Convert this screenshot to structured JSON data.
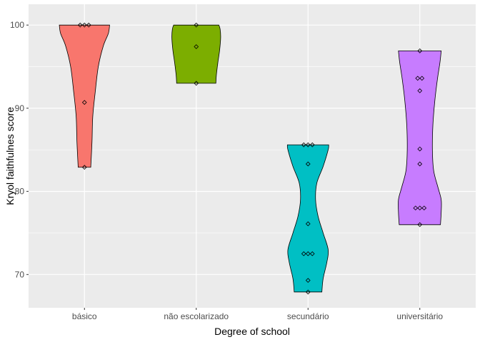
{
  "chart_data": {
    "type": "violin",
    "xlabel": "Degree of school",
    "ylabel": "Kryol faithfulnes score",
    "ylim": [
      66,
      102.5
    ],
    "yticks": [
      70,
      80,
      90,
      100
    ],
    "grid": true,
    "legend": "none",
    "categories": [
      {
        "name": "básico",
        "color": "#F8766D",
        "points": [
          100,
          100,
          100,
          90.7,
          82.9
        ],
        "violin": [
          [
            82.9,
            0.25
          ],
          [
            86,
            0.3
          ],
          [
            89,
            0.33
          ],
          [
            92,
            0.43
          ],
          [
            95,
            0.55
          ],
          [
            97.5,
            0.75
          ],
          [
            99,
            0.95
          ],
          [
            100,
            1.0
          ]
        ]
      },
      {
        "name": "não escolarizado",
        "color": "#7CAE00",
        "points": [
          100,
          97.4,
          93
        ],
        "violin": [
          [
            93,
            0.78
          ],
          [
            94,
            0.8
          ],
          [
            95.5,
            0.86
          ],
          [
            97,
            0.93
          ],
          [
            98.5,
            0.97
          ],
          [
            99.5,
            0.95
          ],
          [
            100,
            0.9
          ]
        ]
      },
      {
        "name": "secundário",
        "color": "#00BFC4",
        "points": [
          85.6,
          85.6,
          85.6,
          83.3,
          76.1,
          72.5,
          72.5,
          72.5,
          69.3,
          67.9
        ],
        "violin": [
          [
            67.9,
            0.55
          ],
          [
            69.5,
            0.6
          ],
          [
            71.5,
            0.75
          ],
          [
            73,
            0.8
          ],
          [
            75,
            0.6
          ],
          [
            77,
            0.4
          ],
          [
            79,
            0.3
          ],
          [
            81,
            0.35
          ],
          [
            83,
            0.6
          ],
          [
            85,
            0.8
          ],
          [
            85.6,
            0.82
          ]
        ]
      },
      {
        "name": "universitário",
        "color": "#C77CFF",
        "points": [
          96.9,
          93.6,
          93.6,
          92.1,
          85.1,
          83.3,
          78,
          78,
          78,
          76
        ],
        "violin": [
          [
            76,
            0.82
          ],
          [
            77.5,
            0.85
          ],
          [
            79,
            0.85
          ],
          [
            80.5,
            0.72
          ],
          [
            82.5,
            0.55
          ],
          [
            85,
            0.5
          ],
          [
            88,
            0.52
          ],
          [
            91,
            0.6
          ],
          [
            93.5,
            0.7
          ],
          [
            95.5,
            0.8
          ],
          [
            96.9,
            0.85
          ]
        ]
      }
    ]
  }
}
